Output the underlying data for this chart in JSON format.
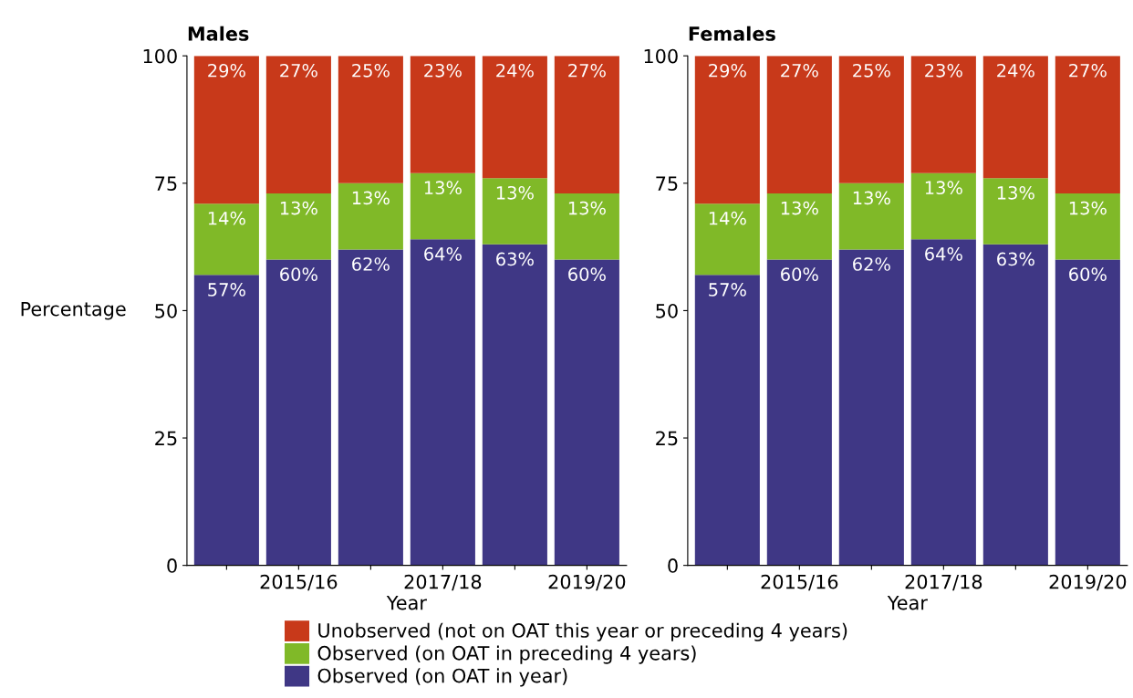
{
  "chart_data": [
    {
      "type": "bar",
      "title": "Males",
      "xlabel": "Year",
      "ylabel": "Percentage",
      "stacked": true,
      "legend": "bottom",
      "data_labels": false,
      "categories": [
        null,
        "2015/16",
        null,
        "2017/18",
        null,
        "2019/20"
      ],
      "ylim": [
        0,
        100
      ],
      "yticks": [
        0,
        25,
        50,
        75,
        100
      ],
      "grid": false,
      "series": [
        {
          "name": "Observed (on OAT in year)",
          "color": "#3f3785",
          "values": [
            57,
            60,
            62,
            64,
            63,
            60
          ],
          "value_labels": [
            "57%",
            "60%",
            "62%",
            "64%",
            "63%",
            "60%"
          ]
        },
        {
          "name": "Observed (on OAT in preceding 4 years)",
          "color": "#80b928",
          "values": [
            14,
            13,
            13,
            13,
            13,
            13
          ],
          "value_labels": [
            "14%",
            "13%",
            "13%",
            "13%",
            "13%",
            "13%"
          ]
        },
        {
          "name": "Unobserved (not on OAT this year or preceding 4 years)",
          "color": "#c8391a",
          "values": [
            29,
            27,
            25,
            23,
            24,
            27
          ],
          "value_labels": [
            "29%",
            "27%",
            "25%",
            "23%",
            "24%",
            "27%"
          ]
        }
      ]
    },
    {
      "type": "bar",
      "title": "Females",
      "xlabel": "Year",
      "stacked": true,
      "legend": "bottom",
      "data_labels": false,
      "categories": [
        null,
        "2015/16",
        null,
        "2017/18",
        null,
        "2019/20"
      ],
      "ylim": [
        0,
        100
      ],
      "yticks": [
        0,
        25,
        50,
        75,
        100
      ],
      "grid": false,
      "series": [
        {
          "name": "Observed (on OAT in year)",
          "color": "#3f3785",
          "values": [
            57,
            60,
            62,
            64,
            63,
            60
          ],
          "value_labels": [
            "57%",
            "60%",
            "62%",
            "64%",
            "63%",
            "60%"
          ]
        },
        {
          "name": "Observed (on OAT in preceding 4 years)",
          "color": "#80b928",
          "values": [
            14,
            13,
            13,
            13,
            13,
            13
          ],
          "value_labels": [
            "14%",
            "13%",
            "13%",
            "13%",
            "13%",
            "13%"
          ]
        },
        {
          "name": "Unobserved (not on OAT this year or preceding 4 years)",
          "color": "#c8391a",
          "values": [
            29,
            27,
            25,
            23,
            24,
            27
          ],
          "value_labels": [
            "29%",
            "27%",
            "25%",
            "23%",
            "24%",
            "27%"
          ]
        }
      ]
    }
  ]
}
